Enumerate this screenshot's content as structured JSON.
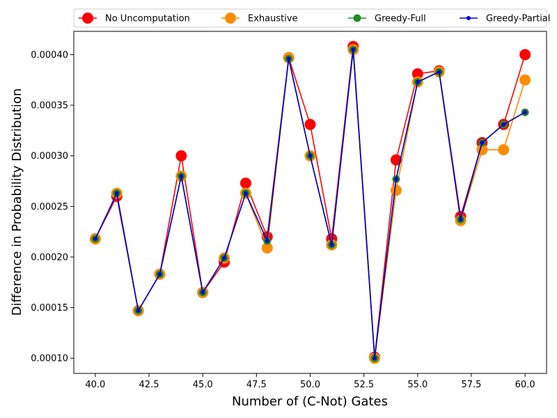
{
  "chart_data": {
    "type": "line",
    "xlabel": "Number of (C-Not) Gates",
    "ylabel": "Difference in Probability Distribution",
    "xlim": [
      39.0,
      61.0
    ],
    "ylim": [
      8.5e-05,
      0.000423
    ],
    "xticks": [
      40.0,
      42.5,
      45.0,
      47.5,
      50.0,
      52.5,
      55.0,
      57.5,
      60.0
    ],
    "xtick_labels": [
      "40.0",
      "42.5",
      "45.0",
      "47.5",
      "50.0",
      "52.5",
      "55.0",
      "57.5",
      "60.0"
    ],
    "yticks": [
      0.0001,
      0.00015,
      0.0002,
      0.00025,
      0.0003,
      0.00035,
      0.0004
    ],
    "ytick_labels": [
      "0.00010",
      "0.00015",
      "0.00020",
      "0.00025",
      "0.00030",
      "0.00035",
      "0.00040"
    ],
    "grid": false,
    "legend_position": "top",
    "x": [
      40,
      41,
      42,
      43,
      44,
      45,
      46,
      47,
      48,
      49,
      50,
      51,
      52,
      53,
      54,
      55,
      56,
      57,
      58,
      59,
      60
    ],
    "series": [
      {
        "name": "No Uncomputation",
        "color": "#ff0000",
        "marker": "large",
        "values": [
          0.000218,
          0.00026,
          0.000147,
          0.000183,
          0.0003,
          0.000165,
          0.000195,
          0.000273,
          0.00022,
          0.000397,
          0.000331,
          0.000218,
          0.000408,
          0.000101,
          0.000296,
          0.000381,
          0.000384,
          0.00024,
          0.000313,
          0.000331,
          0.0004
        ]
      },
      {
        "name": "Exhaustive",
        "color": "#ff8c00",
        "marker": "large",
        "values": [
          0.000218,
          0.000263,
          0.000147,
          0.000183,
          0.00028,
          0.000165,
          0.000199,
          0.000263,
          0.000209,
          0.000397,
          0.0003,
          0.000212,
          0.000405,
          0.0001,
          0.000266,
          0.000373,
          0.000383,
          0.000236,
          0.000306,
          0.000306,
          0.000375
        ]
      },
      {
        "name": "Greedy-Full",
        "color": "#228b22",
        "marker": "medium",
        "values": [
          0.000218,
          0.000263,
          0.000147,
          0.000183,
          0.00028,
          0.000165,
          0.000199,
          0.000263,
          0.000216,
          0.000396,
          0.0003,
          0.000212,
          0.000405,
          0.0001,
          0.000277,
          0.000373,
          0.000383,
          0.000237,
          0.000313,
          0.000331,
          0.000343
        ]
      },
      {
        "name": "Greedy-Partial",
        "color": "#0000cd",
        "marker": "small",
        "values": [
          0.000218,
          0.000263,
          0.000147,
          0.000183,
          0.00028,
          0.000165,
          0.000199,
          0.000263,
          0.000216,
          0.000396,
          0.0003,
          0.000212,
          0.000405,
          0.0001,
          0.000277,
          0.000373,
          0.000383,
          0.000237,
          0.000313,
          0.000331,
          0.000343
        ]
      }
    ]
  }
}
